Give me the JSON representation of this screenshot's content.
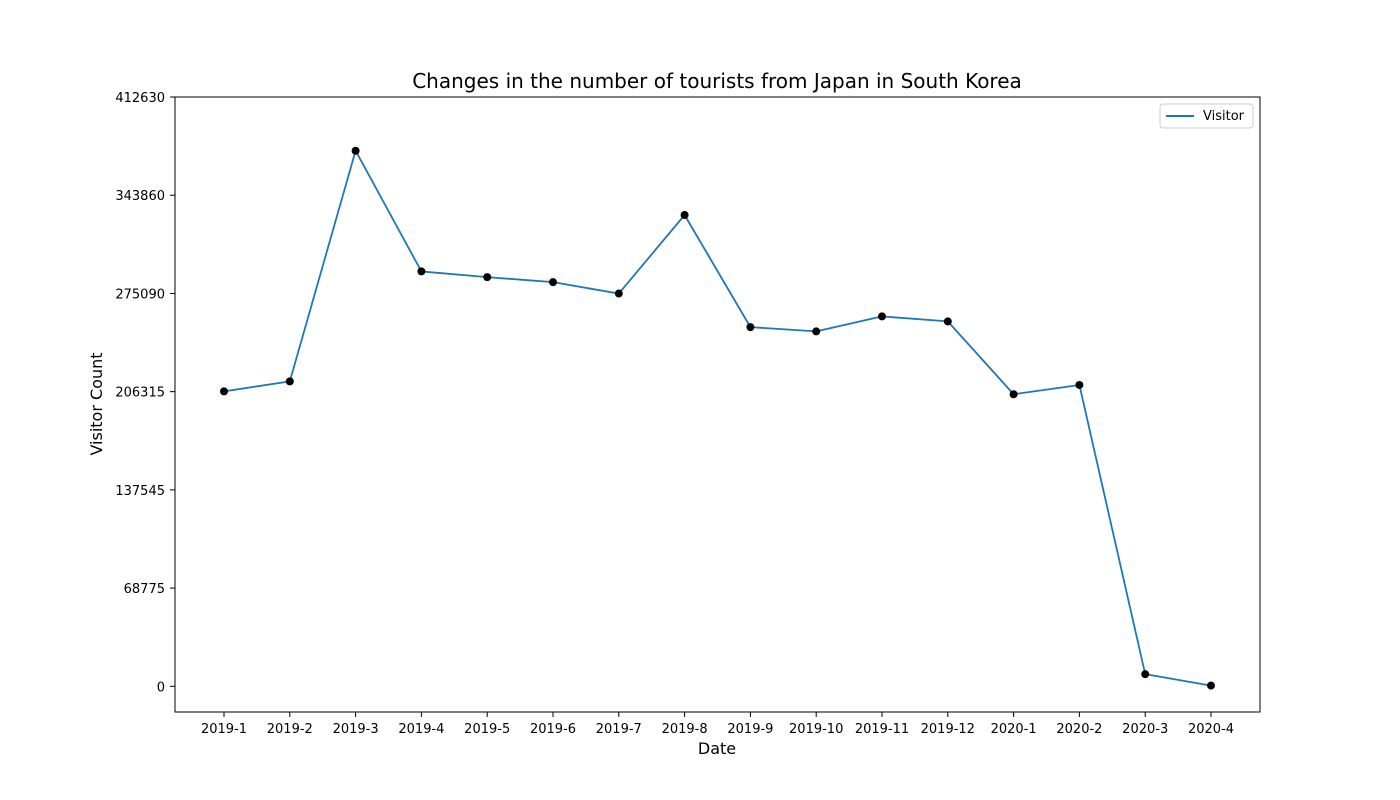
{
  "chart_data": {
    "type": "line",
    "title": "Changes in the number of tourists from Japan in South Korea",
    "xlabel": "Date",
    "ylabel": "Visitor Count",
    "categories": [
      "2019-1",
      "2019-2",
      "2019-3",
      "2019-4",
      "2019-5",
      "2019-6",
      "2019-7",
      "2019-8",
      "2019-9",
      "2019-10",
      "2019-11",
      "2019-12",
      "2020-1",
      "2020-2",
      "2020-3",
      "2020-4"
    ],
    "series": [
      {
        "name": "Visitor",
        "values": [
          206500,
          213500,
          375000,
          290500,
          286500,
          283000,
          275000,
          330000,
          251500,
          248500,
          259000,
          255500,
          204500,
          211000,
          8500,
          500
        ]
      }
    ],
    "ylim": [
      -18000,
      412630
    ],
    "yticks": [
      0,
      68775,
      137545,
      206315,
      275090,
      343860,
      412630
    ],
    "ytick_labels": [
      "0",
      "68775",
      "137545",
      "206315",
      "275090",
      "343860",
      "412630"
    ],
    "grid": false,
    "legend_position": "top-right",
    "colors": {
      "line": "#1f77b4",
      "markers": "#000000",
      "axes": "#000000"
    }
  }
}
